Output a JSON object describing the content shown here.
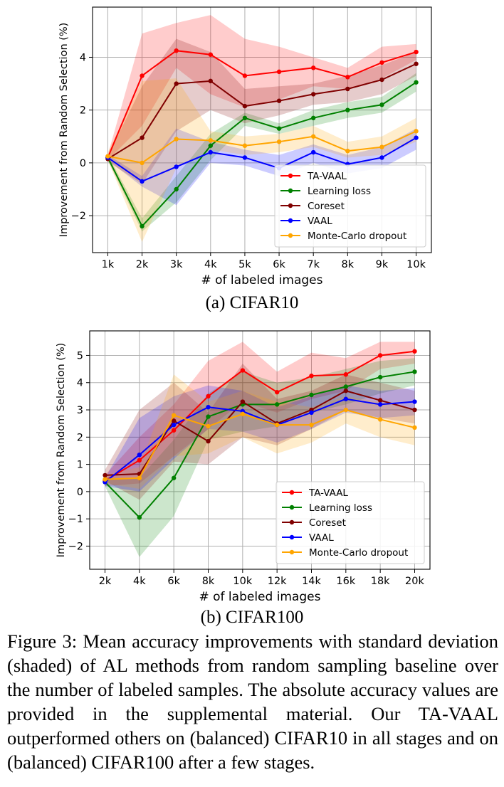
{
  "charts": {
    "a": {
      "subcaption": "(a) CIFAR10"
    },
    "b": {
      "subcaption": "(b) CIFAR100"
    }
  },
  "caption": "Figure 3: Mean accuracy improvements with standard deviation (shaded) of AL methods from random sampling baseline over the number of labeled samples. The absolute accuracy values are provided in the supplemental material. Our TA-VAAL outperformed others on (balanced) CIFAR10 in all stages and on (balanced) CIFAR100 after a few stages.",
  "colors": {
    "TA-VAAL": "#ff0000",
    "Learning loss": "#008000",
    "Coreset": "#800000",
    "VAAL": "#0000ff",
    "Monte-Carlo dropout": "#ffa500"
  },
  "chart_data": [
    {
      "type": "line",
      "title": "",
      "xlabel": "# of labeled images",
      "ylabel": "Improvement from Random Selection (%)",
      "categories": [
        "1k",
        "2k",
        "3k",
        "4k",
        "5k",
        "6k",
        "7k",
        "8k",
        "9k",
        "10k"
      ],
      "ylim": [
        -3.4,
        5.9
      ],
      "yticks": [
        -2,
        0,
        2,
        4
      ],
      "yticklabels": [
        "−2",
        "0",
        "2",
        "4"
      ],
      "grid": true,
      "legend_position": "lower-right",
      "series": [
        {
          "name": "TA-VAAL",
          "color": "#ff0000",
          "values": [
            0.2,
            3.3,
            4.25,
            4.1,
            3.3,
            3.45,
            3.6,
            3.25,
            3.8,
            4.2
          ],
          "lower": [
            0.1,
            1.4,
            3.6,
            2.6,
            2.1,
            2.4,
            2.9,
            2.8,
            3.2,
            3.9
          ],
          "upper": [
            0.3,
            4.9,
            5.3,
            5.6,
            4.7,
            4.4,
            4.0,
            3.6,
            4.4,
            4.5
          ]
        },
        {
          "name": "Learning loss",
          "color": "#008000",
          "values": [
            0.2,
            -2.4,
            -1.0,
            0.65,
            1.7,
            1.3,
            1.7,
            2.0,
            2.2,
            3.05
          ],
          "lower": [
            0.1,
            -2.6,
            -1.5,
            0.1,
            1.4,
            1.1,
            1.4,
            1.7,
            1.9,
            2.7
          ],
          "upper": [
            0.3,
            -2.1,
            -0.5,
            1.1,
            1.9,
            1.5,
            2.0,
            2.3,
            2.5,
            3.4
          ]
        },
        {
          "name": "Coreset",
          "color": "#800000",
          "values": [
            0.15,
            0.95,
            3.0,
            3.1,
            2.15,
            2.35,
            2.6,
            2.8,
            3.15,
            3.75
          ],
          "lower": [
            0.05,
            -0.8,
            1.2,
            2.0,
            1.5,
            1.8,
            2.2,
            2.3,
            2.6,
            3.3
          ],
          "upper": [
            0.25,
            2.9,
            4.7,
            4.2,
            2.8,
            2.9,
            3.0,
            3.3,
            3.7,
            4.2
          ]
        },
        {
          "name": "VAAL",
          "color": "#0000ff",
          "values": [
            0.2,
            -0.7,
            -0.15,
            0.4,
            0.2,
            -0.2,
            0.4,
            -0.05,
            0.2,
            0.95
          ],
          "lower": [
            0.1,
            -0.9,
            -1.6,
            0.0,
            -0.1,
            -0.5,
            0.0,
            -0.4,
            -0.2,
            0.5
          ],
          "upper": [
            0.3,
            -0.5,
            1.3,
            0.8,
            0.5,
            0.3,
            0.7,
            0.3,
            0.6,
            1.3
          ]
        },
        {
          "name": "Monte-Carlo dropout",
          "color": "#ffa500",
          "values": [
            0.25,
            0.0,
            0.9,
            0.85,
            0.65,
            0.8,
            1.0,
            0.45,
            0.6,
            1.2
          ],
          "lower": [
            0.1,
            -3.0,
            -0.2,
            0.5,
            0.3,
            0.4,
            0.6,
            0.2,
            0.3,
            0.8
          ],
          "upper": [
            0.4,
            3.1,
            3.2,
            1.2,
            1.0,
            1.1,
            1.4,
            0.8,
            1.0,
            1.7
          ]
        }
      ]
    },
    {
      "type": "line",
      "title": "",
      "xlabel": "# of labeled images",
      "ylabel": "Improvement from Random Selection (%)",
      "categories": [
        "2k",
        "4k",
        "6k",
        "8k",
        "10k",
        "12k",
        "14k",
        "16k",
        "18k",
        "20k"
      ],
      "ylim": [
        -2.85,
        5.9
      ],
      "yticks": [
        -2,
        -1,
        0,
        1,
        2,
        3,
        4,
        5
      ],
      "yticklabels": [
        "−2",
        "−1",
        "0",
        "1",
        "2",
        "3",
        "4",
        "5"
      ],
      "grid": true,
      "legend_position": "lower-right",
      "series": [
        {
          "name": "TA-VAAL",
          "color": "#ff0000",
          "values": [
            0.4,
            1.15,
            2.25,
            3.5,
            4.45,
            3.65,
            4.25,
            4.3,
            5.0,
            5.15
          ],
          "lower": [
            0.2,
            0.3,
            1.3,
            2.3,
            3.3,
            2.9,
            3.4,
            3.7,
            4.5,
            4.7
          ],
          "upper": [
            0.6,
            2.0,
            3.2,
            4.8,
            5.5,
            4.4,
            5.1,
            4.9,
            5.5,
            5.5
          ]
        },
        {
          "name": "Learning loss",
          "color": "#008000",
          "values": [
            0.35,
            -0.95,
            0.5,
            2.75,
            3.2,
            3.2,
            3.55,
            3.85,
            4.2,
            4.4
          ],
          "lower": [
            0.2,
            -2.4,
            -0.9,
            1.9,
            2.2,
            2.4,
            2.9,
            3.2,
            3.6,
            3.9
          ],
          "upper": [
            0.5,
            0.5,
            1.9,
            3.6,
            4.4,
            4.0,
            4.2,
            4.5,
            4.8,
            4.9
          ]
        },
        {
          "name": "Coreset",
          "color": "#800000",
          "values": [
            0.6,
            0.65,
            2.6,
            1.85,
            3.3,
            2.5,
            3.0,
            3.7,
            3.35,
            3.0
          ],
          "lower": [
            0.4,
            -0.3,
            1.1,
            1.0,
            2.0,
            1.7,
            2.3,
            3.0,
            2.7,
            2.5
          ],
          "upper": [
            0.8,
            3.0,
            4.0,
            2.9,
            4.7,
            3.4,
            3.7,
            4.3,
            4.0,
            3.7
          ]
        },
        {
          "name": "VAAL",
          "color": "#0000ff",
          "values": [
            0.35,
            1.35,
            2.45,
            3.1,
            2.95,
            2.45,
            2.9,
            3.4,
            3.2,
            3.3
          ],
          "lower": [
            0.2,
            0.0,
            1.2,
            2.3,
            2.2,
            1.8,
            2.3,
            2.9,
            2.7,
            2.8
          ],
          "upper": [
            0.5,
            2.7,
            3.5,
            3.9,
            3.7,
            3.1,
            3.5,
            3.9,
            3.7,
            3.8
          ]
        },
        {
          "name": "Monte-Carlo dropout",
          "color": "#ffa500",
          "values": [
            0.45,
            0.5,
            2.8,
            2.4,
            2.85,
            2.45,
            2.45,
            3.0,
            2.65,
            2.35
          ],
          "lower": [
            0.3,
            0.1,
            1.3,
            1.4,
            2.0,
            1.4,
            1.8,
            2.5,
            2.0,
            1.7
          ],
          "upper": [
            0.6,
            0.9,
            4.3,
            3.3,
            3.7,
            3.3,
            3.1,
            3.5,
            3.3,
            3.0
          ]
        }
      ]
    }
  ]
}
